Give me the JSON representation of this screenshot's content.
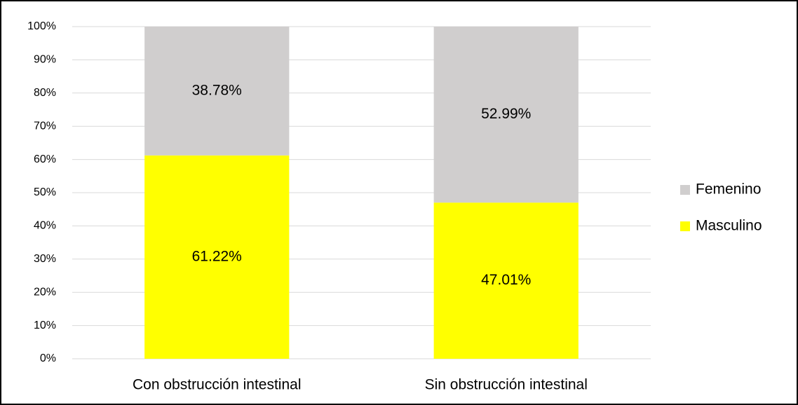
{
  "chart_data": {
    "type": "stacked_bar",
    "categories": [
      "Con obstrucción intestinal",
      "Sin obstrucción intestinal"
    ],
    "series": [
      {
        "name": "Masculino",
        "color": "#ffff00",
        "values": [
          61.22,
          47.01
        ],
        "value_labels": [
          "61.22%",
          "47.01%"
        ]
      },
      {
        "name": "Femenino",
        "color": "#d0cece",
        "values": [
          38.78,
          52.99
        ],
        "value_labels": [
          "38.78%",
          "52.99%"
        ]
      }
    ],
    "ylim": [
      0,
      100
    ],
    "yticks": [
      {
        "value": 0,
        "label": "0%"
      },
      {
        "value": 10,
        "label": "10%"
      },
      {
        "value": 20,
        "label": "20%"
      },
      {
        "value": 30,
        "label": "30%"
      },
      {
        "value": 40,
        "label": "40%"
      },
      {
        "value": 50,
        "label": "50%"
      },
      {
        "value": 60,
        "label": "60%"
      },
      {
        "value": 70,
        "label": "70%"
      },
      {
        "value": 80,
        "label": "80%"
      },
      {
        "value": 90,
        "label": "90%"
      },
      {
        "value": 100,
        "label": "100%"
      }
    ],
    "grid": true,
    "legend": "right"
  }
}
